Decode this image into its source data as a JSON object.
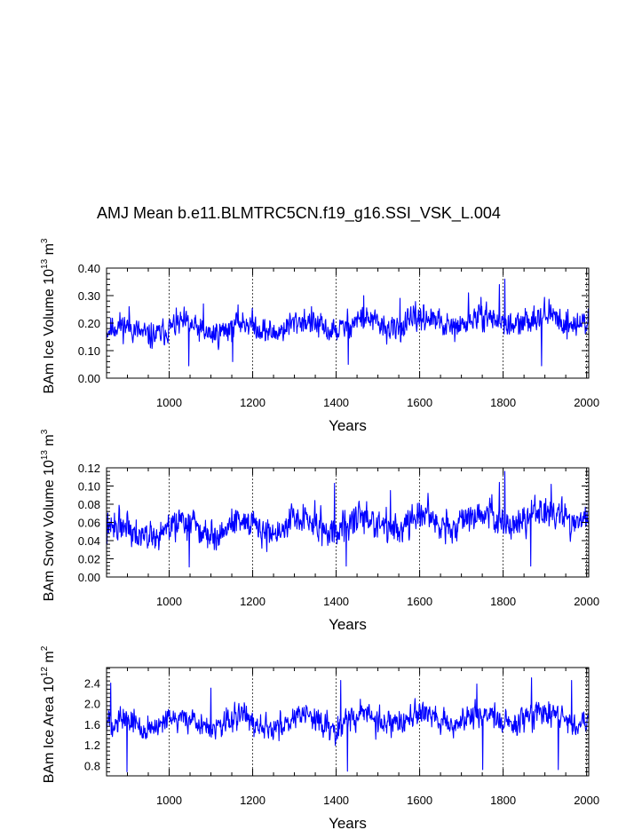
{
  "chart_data": {
    "type": "line",
    "title": "AMJ Mean b.e11.BLMTRC5CN.f19_g16.SSI_VSK_L.004",
    "x_range": [
      850,
      2005
    ],
    "xticks": [
      1000,
      1200,
      1400,
      1600,
      1800,
      2000
    ],
    "xtick_labels": [
      "1000",
      "1200",
      "1400",
      "1600",
      "1800",
      "2000"
    ],
    "grid": "vertical dashed at major x ticks",
    "series_color": "#0000ff",
    "panels": [
      {
        "id": "ice-volume",
        "xlabel": "Years",
        "ylabel_base": "BAm Ice Volume 10",
        "ylabel_exp": "13",
        "ylabel_unit": " m",
        "ylabel_unit_exp": "3",
        "ylim": [
          0.0,
          0.4
        ],
        "yticks": [
          0.0,
          0.1,
          0.2,
          0.3,
          0.4
        ],
        "ytick_labels": [
          "0.00",
          "0.10",
          "0.20",
          "0.30",
          "0.40"
        ],
        "mean": 0.17,
        "noise_amplitude": 0.085,
        "min_clip": 0.045,
        "max_clip": 0.36,
        "trend_per_century": 0.004,
        "seed": 11,
        "spikes": [
          [
            1804,
            0.36
          ],
          [
            1791,
            0.34
          ],
          [
            1466,
            0.3
          ],
          [
            1717,
            0.31
          ],
          [
            1553,
            0.29
          ],
          [
            1082,
            0.27
          ],
          [
            904,
            0.26
          ],
          [
            1429,
            0.05
          ],
          [
            1047,
            0.045
          ],
          [
            1892,
            0.045
          ],
          [
            1152,
            0.06
          ]
        ]
      },
      {
        "id": "snow-volume",
        "xlabel": "Years",
        "ylabel_base": "BAm Snow Volume 10",
        "ylabel_exp": "13",
        "ylabel_unit": " m",
        "ylabel_unit_exp": "3",
        "ylim": [
          0.0,
          0.12
        ],
        "yticks": [
          0.0,
          0.02,
          0.04,
          0.06,
          0.08,
          0.1,
          0.12
        ],
        "ytick_labels": [
          "0.00",
          "0.02",
          "0.04",
          "0.06",
          "0.08",
          "0.10",
          "0.12"
        ],
        "mean": 0.05,
        "noise_amplitude": 0.03,
        "min_clip": 0.011,
        "max_clip": 0.116,
        "trend_per_century": 0.0015,
        "seed": 22,
        "spikes": [
          [
            1804,
            0.116
          ],
          [
            1791,
            0.104
          ],
          [
            1396,
            0.103
          ],
          [
            1915,
            0.102
          ],
          [
            1620,
            0.092
          ],
          [
            1530,
            0.095
          ],
          [
            1048,
            0.011
          ],
          [
            1424,
            0.012
          ],
          [
            1866,
            0.012
          ]
        ]
      },
      {
        "id": "ice-area",
        "xlabel": "Years",
        "ylabel_base": "BAm Ice Area 10",
        "ylabel_exp": "12",
        "ylabel_unit": " m",
        "ylabel_unit_exp": "2",
        "ylim": [
          0.6,
          2.7
        ],
        "yticks": [
          0.8,
          1.2,
          1.6,
          2.0,
          2.4
        ],
        "ytick_labels": [
          "0.8",
          "1.2",
          "1.6",
          "2.0",
          "2.4"
        ],
        "mean": 1.6,
        "noise_amplitude": 0.45,
        "min_clip": 0.65,
        "max_clip": 2.5,
        "trend_per_century": 0.012,
        "seed": 33,
        "spikes": [
          [
            1868,
            2.5
          ],
          [
            1411,
            2.45
          ],
          [
            1964,
            2.45
          ],
          [
            860,
            2.4
          ],
          [
            1737,
            2.38
          ],
          [
            1100,
            2.3
          ],
          [
            899,
            0.68
          ],
          [
            1427,
            0.69
          ],
          [
            1751,
            0.72
          ],
          [
            1932,
            0.72
          ]
        ]
      }
    ]
  }
}
